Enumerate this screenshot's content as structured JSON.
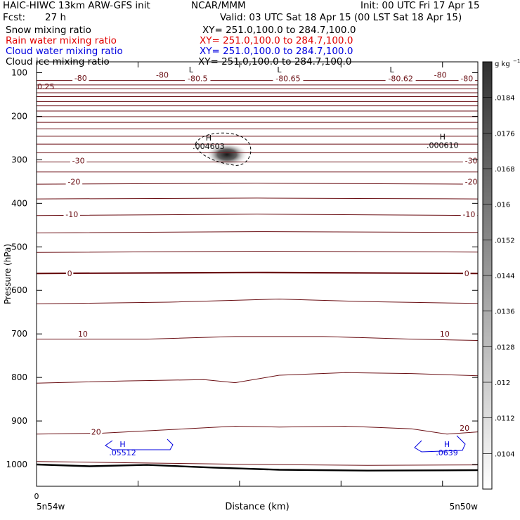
{
  "header": {
    "title": "HAIC-HIWC 13km ARW-GFS init",
    "org": "NCAR/MMM",
    "init": "Init: 00 UTC Fri 17 Apr 15",
    "fcst_label": "Fcst:",
    "fcst_value": "27 h",
    "valid": "Valid: 03 UTC Sat 18 Apr 15 (00 LST Sat 18 Apr 15)",
    "fields": [
      {
        "name": "Snow mixing ratio",
        "xy": "XY= 251.0,100.0 to 284.7,100.0",
        "color": "#000000"
      },
      {
        "name": "Rain water mixing ratio",
        "xy": "XY= 251.0,100.0 to 284.7,100.0",
        "color": "#e00000"
      },
      {
        "name": "Cloud water mixing ratio",
        "xy": "XY= 251.0,100.0 to 284.7,100.0",
        "color": "#0000e0"
      },
      {
        "name": "Cloud ice mixing ratio",
        "xy": "XY= 251.0,100.0 to 284.7,100.0",
        "color": "#000000"
      }
    ]
  },
  "chart_data": {
    "type": "contour",
    "xlabel": "Distance (km)",
    "ylabel": "Pressure (hPa)",
    "ylim": [
      1050,
      75
    ],
    "yticks": [
      100,
      200,
      300,
      400,
      500,
      600,
      700,
      800,
      900,
      1000
    ],
    "x_start_label": "0",
    "x_left_label": "5n54w",
    "x_right_label": "5n50w",
    "colorbar": {
      "unit_prefix": "g kg",
      "unit_exp": "−1",
      "ticks": [
        ".0184",
        ".0176",
        ".0168",
        ".016",
        ".0152",
        ".0144",
        ".0136",
        ".0128",
        ".012",
        ".0112",
        ".0104"
      ]
    },
    "temperature_labels": [
      {
        "text": "-80",
        "p": 112,
        "x": 0.1
      },
      {
        "text": "-80",
        "p": 105,
        "x": 0.285
      },
      {
        "text": "-80.5",
        "p": 113,
        "x": 0.365
      },
      {
        "text": "-80.65",
        "p": 113,
        "x": 0.57
      },
      {
        "text": "-80.62",
        "p": 113,
        "x": 0.825
      },
      {
        "text": "-80",
        "p": 105,
        "x": 0.915
      },
      {
        "text": "-80",
        "p": 113,
        "x": 0.975
      },
      {
        "text": "-30",
        "p": 302,
        "x": 0.095
      },
      {
        "text": "-30",
        "p": 302,
        "x": 0.985
      },
      {
        "text": "-20",
        "p": 350,
        "x": 0.085
      },
      {
        "text": "-20",
        "p": 350,
        "x": 0.985
      },
      {
        "text": "-10",
        "p": 425,
        "x": 0.08
      },
      {
        "text": "-10",
        "p": 425,
        "x": 0.98
      },
      {
        "text": "0",
        "p": 561,
        "x": 0.075
      },
      {
        "text": "0",
        "p": 561,
        "x": 0.975
      },
      {
        "text": "10",
        "p": 700,
        "x": 0.105
      },
      {
        "text": "10",
        "p": 700,
        "x": 0.925
      },
      {
        "text": "20",
        "p": 925,
        "x": 0.135
      },
      {
        "text": "20",
        "p": 916,
        "x": 0.97
      }
    ],
    "edge_label": {
      "text": "0.25",
      "p": 117
    },
    "extrema": [
      {
        "mark": "L",
        "value": "",
        "p": 99,
        "x": 0.35,
        "color": "#000000"
      },
      {
        "mark": "L",
        "value": "",
        "p": 99,
        "x": 0.55,
        "color": "#000000"
      },
      {
        "mark": "L",
        "value": "",
        "p": 99,
        "x": 0.805,
        "color": "#000000"
      },
      {
        "mark": "H",
        "value": ".004603",
        "p": 256,
        "x": 0.39,
        "color": "#000000"
      },
      {
        "mark": "H",
        "value": ".000610",
        "p": 253,
        "x": 0.92,
        "color": "#000000"
      },
      {
        "mark": "H",
        "value": ".05512",
        "p": 960,
        "x": 0.195,
        "color": "#0000e0"
      },
      {
        "mark": "H",
        "value": ".0639",
        "p": 960,
        "x": 0.93,
        "color": "#0000e0"
      }
    ]
  }
}
